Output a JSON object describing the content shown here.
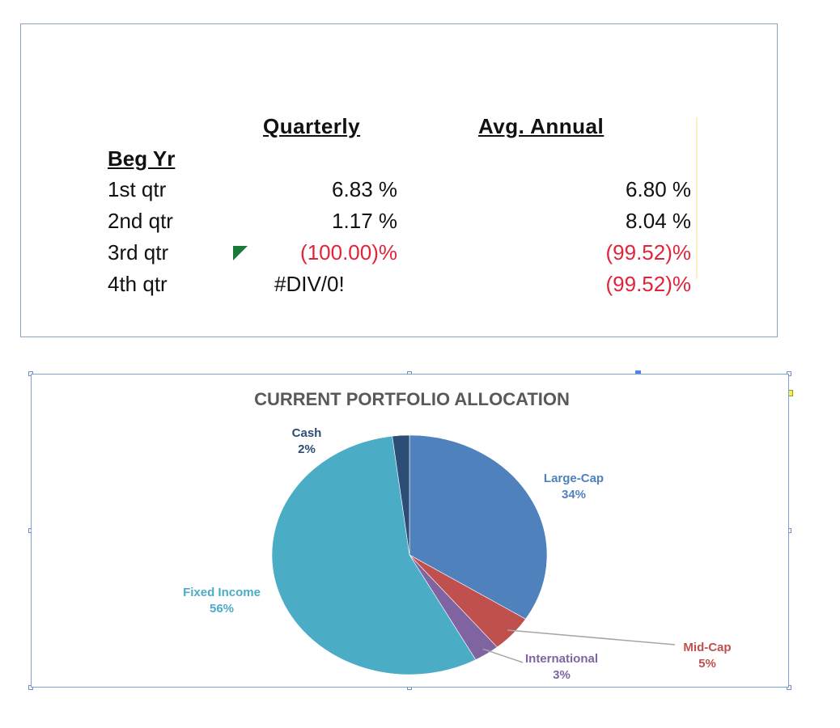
{
  "returns_table": {
    "headers": {
      "quarterly": "Quarterly",
      "annual": "Avg. Annual"
    },
    "section_label": "Beg Yr",
    "rows": [
      {
        "label": "1st qtr",
        "quarterly": "6.83 %",
        "annual": "6.80 %"
      },
      {
        "label": "2nd qtr",
        "quarterly": "1.17 %",
        "annual": "8.04 %"
      },
      {
        "label": "3rd qtr",
        "quarterly": "(100.00)%",
        "annual": "(99.52)%"
      },
      {
        "label": "4th qtr",
        "quarterly": "#DIV/0!",
        "annual": "(99.52)%"
      }
    ],
    "colors": {
      "negative": "#e0253a",
      "error_marker": "#1a7a3b"
    }
  },
  "chart_data": {
    "type": "pie",
    "title": "CURRENT PORTFOLIO ALLOCATION",
    "categories": [
      "Large-Cap",
      "Mid-Cap",
      "International",
      "Fixed Income",
      "Cash"
    ],
    "values": [
      34,
      5,
      3,
      56,
      2
    ],
    "labels": [
      "34%",
      "5%",
      "3%",
      "56%",
      "2%"
    ],
    "colors": [
      "#4f81bd",
      "#c0504d",
      "#8064a2",
      "#4bacc6",
      "#2c4d75"
    ],
    "leader_line_color": "#a6a6a6"
  }
}
